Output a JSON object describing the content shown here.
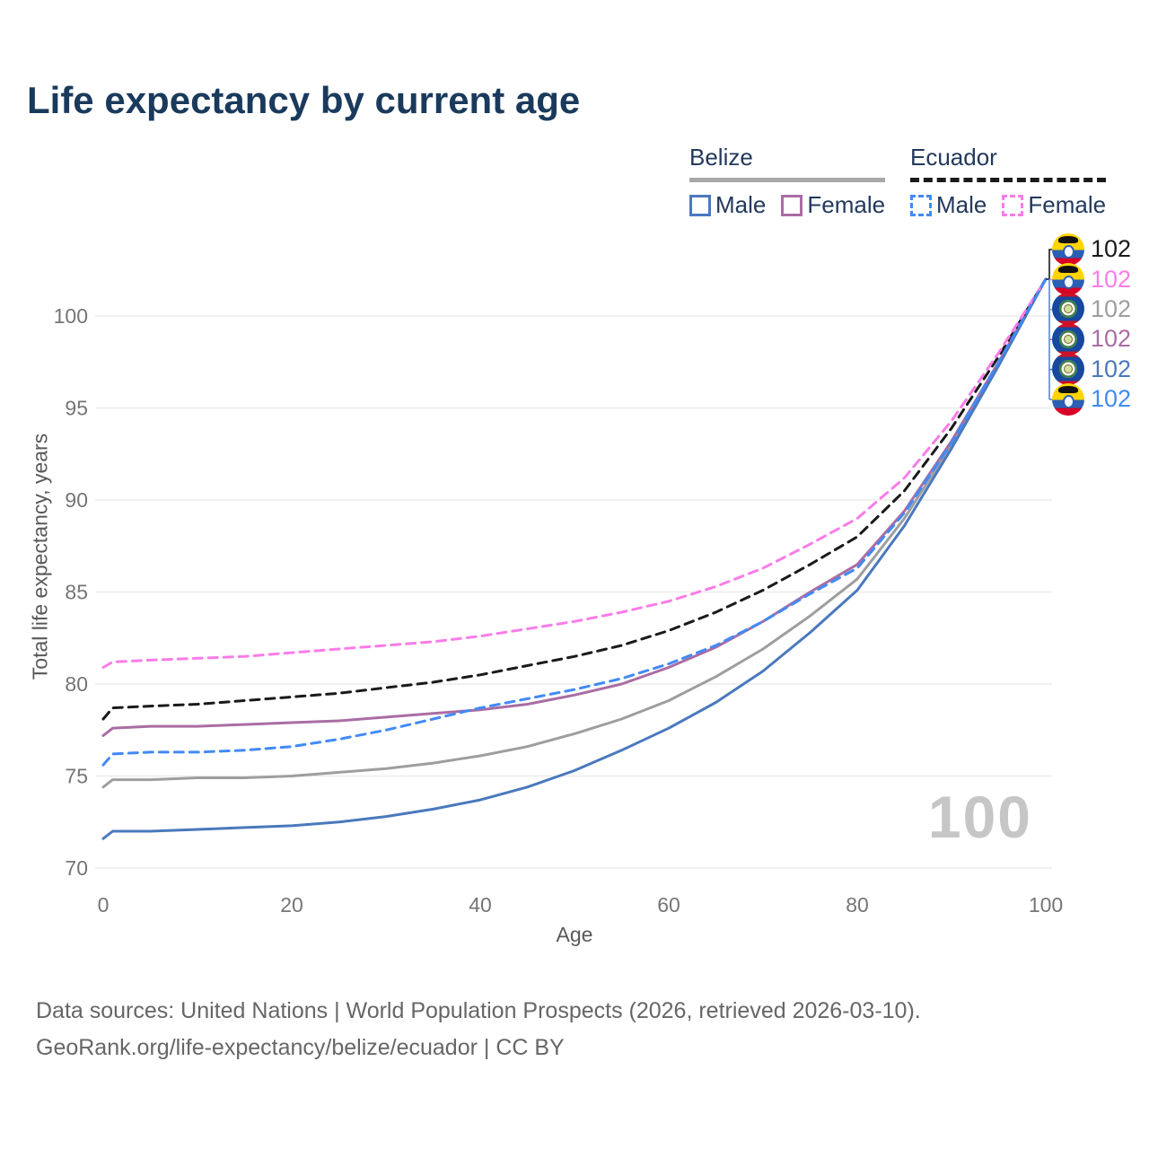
{
  "title": "Life expectancy by current age",
  "legend": {
    "groups": [
      {
        "label": "Belize",
        "underline_style": "solid",
        "underline_color": "#a8a8a8",
        "items": [
          {
            "label": "Male"
          },
          {
            "label": "Female"
          }
        ]
      },
      {
        "label": "Ecuador",
        "underline_style": "dashed",
        "underline_color": "#1a1a1a",
        "items": [
          {
            "label": "Male"
          },
          {
            "label": "Female"
          }
        ]
      }
    ]
  },
  "chart_data": {
    "type": "line",
    "title": "Life expectancy by current age",
    "xlabel": "Age",
    "ylabel": "Total life expectancy, years",
    "xlim": [
      0,
      100
    ],
    "ylim": [
      70,
      102
    ],
    "xticks": [
      0,
      20,
      40,
      60,
      80,
      100
    ],
    "yticks": [
      70,
      75,
      80,
      85,
      90,
      95,
      100
    ],
    "grid": true,
    "legend_position": "top-right",
    "x": [
      0,
      1,
      5,
      10,
      15,
      20,
      25,
      30,
      35,
      40,
      45,
      50,
      55,
      60,
      65,
      70,
      75,
      80,
      85,
      90,
      95,
      100
    ],
    "series": [
      {
        "name": "Belize",
        "country": "Belize",
        "sex": "both",
        "color": "#9e9e9e",
        "dash": false,
        "values": [
          74.4,
          74.8,
          74.8,
          74.9,
          74.9,
          75.0,
          75.2,
          75.4,
          75.7,
          76.1,
          76.6,
          77.3,
          78.1,
          79.1,
          80.4,
          81.9,
          83.7,
          85.7,
          89.0,
          93.0,
          97.4,
          102
        ]
      },
      {
        "name": "Belize Female",
        "country": "Belize",
        "sex": "female",
        "color": "#aa6da3",
        "dash": false,
        "values": [
          77.2,
          77.6,
          77.7,
          77.7,
          77.8,
          77.9,
          78.0,
          78.2,
          78.4,
          78.6,
          78.9,
          79.4,
          80.0,
          80.9,
          82.0,
          83.4,
          85.0,
          86.5,
          89.4,
          93.2,
          97.5,
          102
        ]
      },
      {
        "name": "Belize Male",
        "country": "Belize",
        "sex": "male",
        "color": "#4a79bd",
        "dash": false,
        "values": [
          71.6,
          72.0,
          72.0,
          72.1,
          72.2,
          72.3,
          72.5,
          72.8,
          73.2,
          73.7,
          74.4,
          75.3,
          76.4,
          77.6,
          79.0,
          80.7,
          82.8,
          85.1,
          88.6,
          92.8,
          97.3,
          102
        ]
      },
      {
        "name": "Ecuador",
        "country": "Ecuador",
        "sex": "both",
        "color": "#1a1a1a",
        "dash": true,
        "values": [
          78.1,
          78.7,
          78.8,
          78.9,
          79.1,
          79.3,
          79.5,
          79.8,
          80.1,
          80.5,
          81.0,
          81.5,
          82.1,
          82.9,
          83.9,
          85.1,
          86.5,
          88.0,
          90.5,
          93.9,
          97.8,
          102
        ]
      },
      {
        "name": "Ecuador Female",
        "country": "Ecuador",
        "sex": "female",
        "color": "#f97ce8",
        "dash": true,
        "values": [
          80.9,
          81.2,
          81.3,
          81.4,
          81.5,
          81.7,
          81.9,
          82.1,
          82.3,
          82.6,
          83.0,
          83.4,
          83.9,
          84.5,
          85.3,
          86.3,
          87.6,
          89.0,
          91.2,
          94.3,
          98.0,
          102
        ]
      },
      {
        "name": "Ecuador Male",
        "country": "Ecuador",
        "sex": "male",
        "color": "#428af5",
        "dash": true,
        "values": [
          75.6,
          76.2,
          76.3,
          76.3,
          76.4,
          76.6,
          77.0,
          77.5,
          78.1,
          78.7,
          79.2,
          79.7,
          80.3,
          81.1,
          82.1,
          83.4,
          84.9,
          86.3,
          89.3,
          93.1,
          97.5,
          102
        ]
      }
    ]
  },
  "right_labels": [
    {
      "series": "Ecuador",
      "flag": "ecuador",
      "value": "102",
      "color": "#1a1a1a"
    },
    {
      "series": "Ecuador Female",
      "flag": "ecuador",
      "value": "102",
      "color": "#fb7ce8"
    },
    {
      "series": "Belize",
      "flag": "belize",
      "value": "102",
      "color": "#9e9e9e"
    },
    {
      "series": "Belize Female",
      "flag": "belize",
      "value": "102",
      "color": "#aa6da3"
    },
    {
      "series": "Belize Male",
      "flag": "belize",
      "value": "102",
      "color": "#4a79bd"
    },
    {
      "series": "Ecuador Male",
      "flag": "ecuador",
      "value": "102",
      "color": "#428af5"
    }
  ],
  "watermark": "100",
  "footer": {
    "line1": "Data sources: United Nations | World Population Prospects (2026, retrieved 2026-03-10).",
    "line2": "GeoRank.org/life-expectancy/belize/ecuador | CC BY"
  },
  "colors": {
    "title_text": "#1a3a5c",
    "tick_text": "#757575",
    "gridline": "#ececec",
    "watermark": "#c6c6c6"
  }
}
